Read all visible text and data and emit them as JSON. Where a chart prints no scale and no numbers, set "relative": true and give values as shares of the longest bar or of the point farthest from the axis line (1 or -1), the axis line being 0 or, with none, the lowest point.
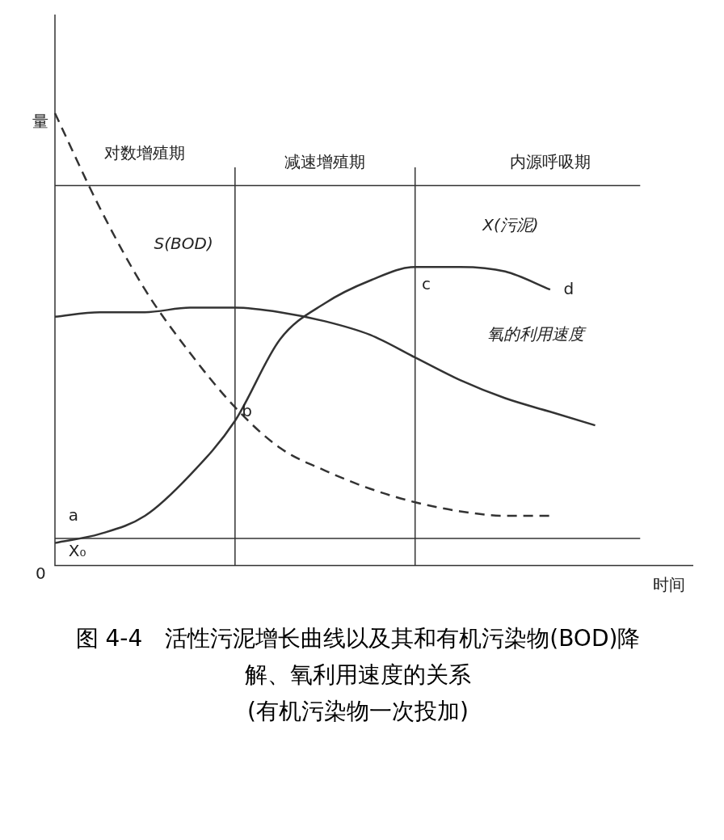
{
  "chart_data": {
    "type": "line",
    "title": "图 4-4　活性污泥增长曲线以及其和有机污染物(BOD)降解、氧利用速度的关系",
    "subtitle": "(有机污染物一次投加)",
    "xlabel": "时间",
    "relative": true,
    "legend": false,
    "grid": false,
    "categories": [
      null,
      null,
      null,
      null,
      null,
      null,
      null,
      null,
      null,
      null,
      null,
      null,
      null,
      null,
      null
    ],
    "series": [
      {
        "name": "S(BOD)",
        "color": "#333333",
        "line_style": "dashed",
        "values": [
          1.0,
          0.79,
          0.61,
          0.47,
          0.35,
          0.26,
          0.21,
          0.17,
          0.14,
          0.12,
          0.11,
          0.11,
          null,
          null,
          null
        ]
      },
      {
        "name": "X(污泥)",
        "color": "#333333",
        "line_style": "solid",
        "values": [
          0.05,
          0.07,
          0.11,
          0.2,
          0.32,
          0.5,
          0.58,
          0.63,
          0.66,
          0.66,
          0.65,
          0.61,
          null,
          null,
          null
        ]
      },
      {
        "name": "氧的利用速度",
        "color": "#333333",
        "line_style": "solid",
        "values": [
          0.55,
          0.56,
          0.56,
          0.57,
          0.57,
          0.56,
          0.54,
          0.51,
          0.46,
          0.41,
          0.37,
          0.34,
          0.31,
          null,
          null
        ]
      }
    ],
    "ref_lines": [
      {
        "axis": "y",
        "value": 0.84
      },
      {
        "axis": "y",
        "value": 0.06
      }
    ],
    "annotations": [
      "对数增殖期",
      "减速增殖期",
      "内源呼吸期",
      "a",
      "b",
      "c",
      "d",
      "X₀",
      "0",
      "量"
    ]
  }
}
